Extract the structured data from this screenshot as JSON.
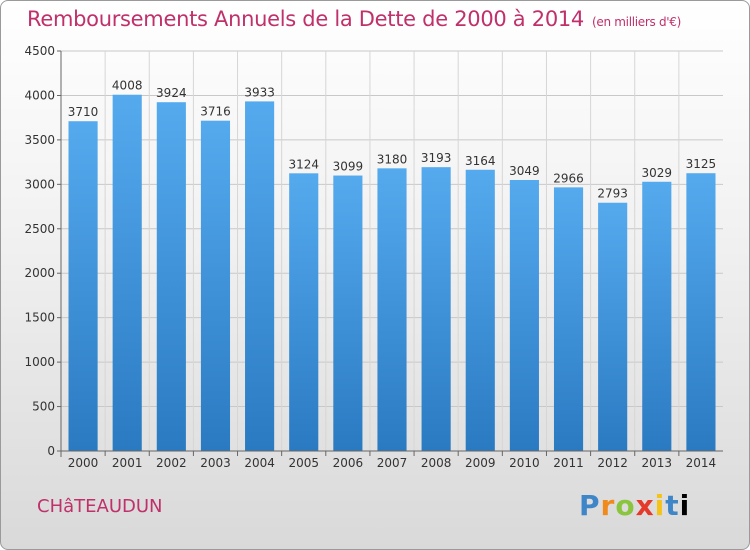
{
  "header": {
    "title": "Remboursements Annuels de la Dette de 2000 à 2014",
    "unit": "(en milliers d'€)"
  },
  "footer": {
    "city": "CHâTEAUDUN",
    "logo_letters": [
      "P",
      "r",
      "o",
      "x",
      "i",
      "t",
      "i"
    ]
  },
  "colors": {
    "bar": "#4a9ee0",
    "bar_dark": "#2a78c0",
    "title": "#c0306a"
  },
  "chart_data": {
    "type": "bar",
    "title": "Remboursements Annuels de la Dette de 2000 à 2014",
    "subtitle": "(en milliers d'€)",
    "xlabel": "",
    "ylabel": "",
    "categories": [
      "2000",
      "2001",
      "2002",
      "2003",
      "2004",
      "2005",
      "2006",
      "2007",
      "2008",
      "2009",
      "2010",
      "2011",
      "2012",
      "2013",
      "2014"
    ],
    "values": [
      3710,
      4008,
      3924,
      3716,
      3933,
      3124,
      3099,
      3180,
      3193,
      3164,
      3049,
      2966,
      2793,
      3029,
      3125
    ],
    "ylim": [
      0,
      4500
    ],
    "yticks": [
      0,
      500,
      1000,
      1500,
      2000,
      2500,
      3000,
      3500,
      4000,
      4500
    ],
    "grid": true,
    "legend": "none"
  }
}
